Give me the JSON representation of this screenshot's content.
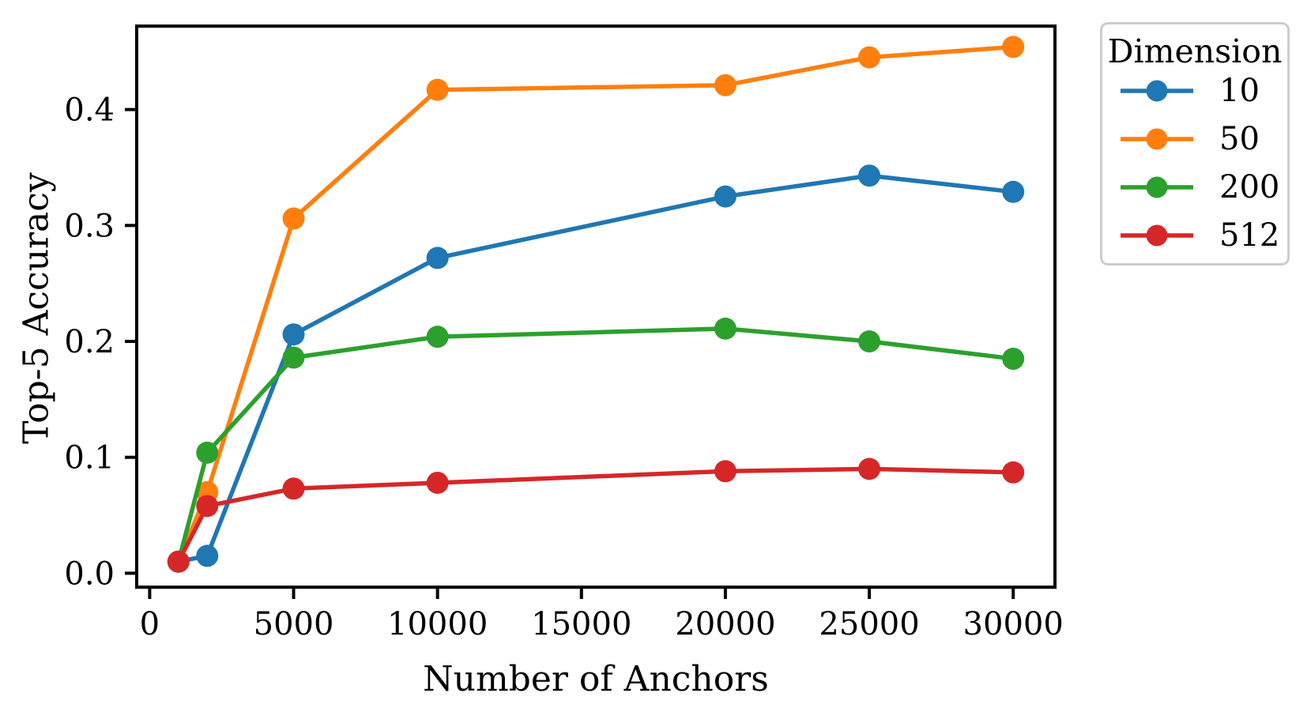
{
  "chart_data": {
    "type": "line",
    "title": "",
    "xlabel": "Number of Anchors",
    "ylabel": "Top-5 Accuracy",
    "x": [
      1000,
      2000,
      5000,
      10000,
      20000,
      25000,
      30000
    ],
    "series": [
      {
        "name": "10",
        "color": "#1f77b4",
        "values": [
          0.01,
          0.015,
          0.206,
          0.272,
          0.325,
          0.343,
          0.329
        ]
      },
      {
        "name": "50",
        "color": "#ff7f0e",
        "values": [
          0.01,
          0.07,
          0.306,
          0.417,
          0.421,
          0.445,
          0.454
        ]
      },
      {
        "name": "200",
        "color": "#2ca02c",
        "values": [
          0.01,
          0.104,
          0.186,
          0.204,
          0.211,
          0.2,
          0.185
        ]
      },
      {
        "name": "512",
        "color": "#d62728",
        "values": [
          0.01,
          0.058,
          0.073,
          0.078,
          0.088,
          0.09,
          0.087
        ]
      }
    ],
    "xticks": {
      "values": [
        0,
        5000,
        10000,
        15000,
        20000,
        25000,
        30000
      ],
      "labels": [
        "0",
        "5000",
        "10000",
        "15000",
        "20000",
        "25000",
        "30000"
      ]
    },
    "yticks": {
      "values": [
        0.0,
        0.1,
        0.2,
        0.3,
        0.4
      ],
      "labels": [
        "0.0",
        "0.1",
        "0.2",
        "0.3",
        "0.4"
      ]
    },
    "xlim": [
      -450,
      31450
    ],
    "ylim": [
      -0.012,
      0.472
    ],
    "grid": false,
    "legend": {
      "title": "Dimension",
      "position": "outside-right"
    },
    "axis_color": "#000000"
  }
}
